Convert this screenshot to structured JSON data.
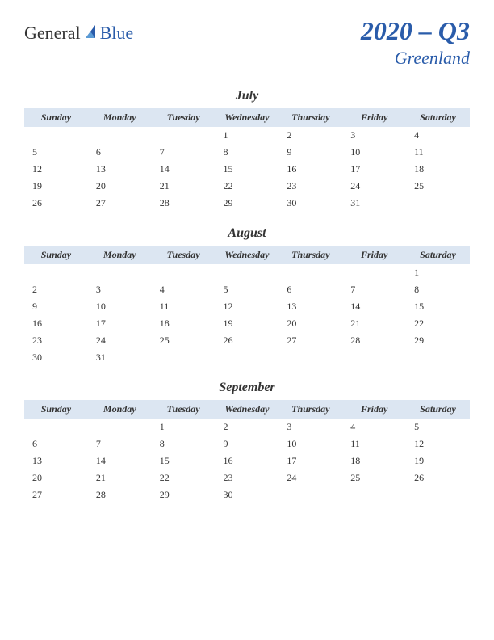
{
  "logo": {
    "part1": "General",
    "part2": "Blue"
  },
  "title": {
    "period": "2020 – Q3",
    "region": "Greenland"
  },
  "day_headers": [
    "Sunday",
    "Monday",
    "Tuesday",
    "Wednesday",
    "Thursday",
    "Friday",
    "Saturday"
  ],
  "header_bg": "#dce6f2",
  "accent_color": "#2a5caa",
  "text_color": "#333333",
  "months": [
    {
      "name": "July",
      "weeks": [
        [
          "",
          "",
          "",
          "1",
          "2",
          "3",
          "4"
        ],
        [
          "5",
          "6",
          "7",
          "8",
          "9",
          "10",
          "11"
        ],
        [
          "12",
          "13",
          "14",
          "15",
          "16",
          "17",
          "18"
        ],
        [
          "19",
          "20",
          "21",
          "22",
          "23",
          "24",
          "25"
        ],
        [
          "26",
          "27",
          "28",
          "29",
          "30",
          "31",
          ""
        ]
      ]
    },
    {
      "name": "August",
      "weeks": [
        [
          "",
          "",
          "",
          "",
          "",
          "",
          "1"
        ],
        [
          "2",
          "3",
          "4",
          "5",
          "6",
          "7",
          "8"
        ],
        [
          "9",
          "10",
          "11",
          "12",
          "13",
          "14",
          "15"
        ],
        [
          "16",
          "17",
          "18",
          "19",
          "20",
          "21",
          "22"
        ],
        [
          "23",
          "24",
          "25",
          "26",
          "27",
          "28",
          "29"
        ],
        [
          "30",
          "31",
          "",
          "",
          "",
          "",
          ""
        ]
      ]
    },
    {
      "name": "September",
      "weeks": [
        [
          "",
          "",
          "1",
          "2",
          "3",
          "4",
          "5"
        ],
        [
          "6",
          "7",
          "8",
          "9",
          "10",
          "11",
          "12"
        ],
        [
          "13",
          "14",
          "15",
          "16",
          "17",
          "18",
          "19"
        ],
        [
          "20",
          "21",
          "22",
          "23",
          "24",
          "25",
          "26"
        ],
        [
          "27",
          "28",
          "29",
          "30",
          "",
          "",
          ""
        ]
      ]
    }
  ]
}
